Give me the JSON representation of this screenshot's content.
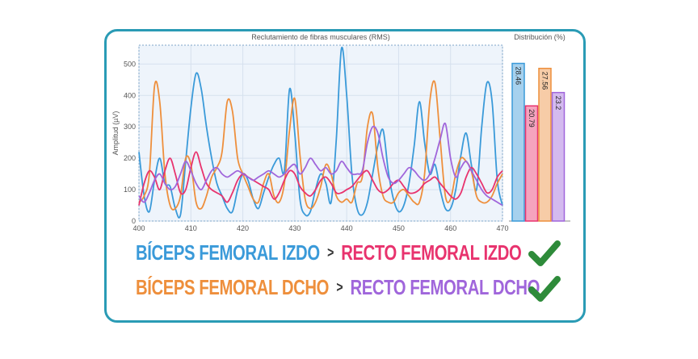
{
  "chart_data": [
    {
      "type": "line",
      "title": "Reclutamiento de fibras musculares (RMS)",
      "xlabel": "",
      "ylabel": "Amplitud (µV)",
      "xlim": [
        400,
        470
      ],
      "ylim": [
        0,
        560
      ],
      "x_ticks": [
        "400",
        "410",
        "420",
        "430",
        "440",
        "450",
        "460",
        "470"
      ],
      "y_ticks": [
        "0",
        "100",
        "200",
        "300",
        "400",
        "500"
      ],
      "grid": true,
      "series": [
        {
          "name": "",
          "color": "#3a9ad9",
          "x": [
            400,
            401,
            402,
            403,
            404,
            405,
            406,
            407,
            408,
            409,
            410,
            411,
            412,
            413,
            414,
            415,
            416,
            417,
            418,
            419,
            420,
            421,
            422,
            423,
            424,
            425,
            426,
            427,
            428,
            429,
            430,
            431,
            432,
            433,
            434,
            435,
            436,
            437,
            438,
            439,
            440,
            441,
            442,
            443,
            444,
            445,
            446,
            447,
            448,
            449,
            450,
            451,
            452,
            453,
            454,
            455,
            456,
            457,
            458,
            459,
            460,
            461,
            462,
            463,
            464,
            465,
            466,
            467,
            468,
            469,
            470
          ],
          "values": [
            220,
            80,
            30,
            130,
            200,
            120,
            110,
            40,
            20,
            190,
            360,
            470,
            420,
            300,
            200,
            120,
            80,
            40,
            30,
            100,
            150,
            130,
            70,
            40,
            90,
            140,
            180,
            200,
            160,
            420,
            280,
            70,
            20,
            30,
            100,
            150,
            120,
            60,
            260,
            550,
            400,
            150,
            40,
            20,
            60,
            150,
            240,
            290,
            160,
            70,
            30,
            50,
            120,
            240,
            380,
            250,
            150,
            180,
            100,
            40,
            40,
            100,
            210,
            280,
            180,
            100,
            300,
            440,
            380,
            130,
            50
          ]
        },
        {
          "name": "",
          "color": "#ee8f3c",
          "x": [
            400,
            401,
            402,
            403,
            404,
            405,
            406,
            407,
            408,
            409,
            410,
            411,
            412,
            413,
            414,
            415,
            416,
            417,
            418,
            419,
            420,
            421,
            422,
            423,
            424,
            425,
            426,
            427,
            428,
            429,
            430,
            431,
            432,
            433,
            434,
            435,
            436,
            437,
            438,
            439,
            440,
            441,
            442,
            443,
            444,
            445,
            446,
            447,
            448,
            449,
            450,
            451,
            452,
            453,
            454,
            455,
            456,
            457,
            458,
            459,
            460,
            461,
            462,
            463,
            464,
            465,
            466,
            467,
            468,
            469,
            470
          ],
          "values": [
            60,
            80,
            150,
            430,
            380,
            150,
            50,
            40,
            80,
            200,
            180,
            60,
            40,
            80,
            140,
            170,
            220,
            380,
            350,
            200,
            150,
            110,
            70,
            60,
            120,
            150,
            80,
            60,
            120,
            290,
            390,
            210,
            70,
            40,
            60,
            110,
            180,
            150,
            80,
            60,
            70,
            60,
            120,
            140,
            300,
            340,
            170,
            80,
            60,
            60,
            90,
            100,
            80,
            60,
            60,
            150,
            380,
            440,
            260,
            80,
            70,
            150,
            200,
            190,
            160,
            80,
            60,
            60,
            80,
            120,
            150
          ]
        },
        {
          "name": "",
          "color": "#e8336e",
          "x": [
            400,
            401,
            402,
            403,
            404,
            405,
            406,
            407,
            408,
            409,
            410,
            411,
            412,
            413,
            414,
            415,
            416,
            417,
            418,
            419,
            420,
            421,
            422,
            423,
            424,
            425,
            426,
            427,
            428,
            429,
            430,
            431,
            432,
            433,
            434,
            435,
            436,
            437,
            438,
            439,
            440,
            441,
            442,
            443,
            444,
            445,
            446,
            447,
            448,
            449,
            450,
            451,
            452,
            453,
            454,
            455,
            456,
            457,
            458,
            459,
            460,
            461,
            462,
            463,
            464,
            465,
            466,
            467,
            468,
            469,
            470
          ],
          "values": [
            50,
            120,
            160,
            140,
            100,
            160,
            200,
            150,
            90,
            100,
            170,
            220,
            170,
            120,
            100,
            90,
            80,
            60,
            90,
            130,
            150,
            140,
            130,
            120,
            110,
            100,
            70,
            90,
            130,
            160,
            150,
            110,
            90,
            80,
            100,
            130,
            140,
            120,
            90,
            90,
            100,
            110,
            130,
            150,
            160,
            130,
            100,
            90,
            100,
            120,
            130,
            110,
            90,
            90,
            100,
            120,
            130,
            140,
            120,
            100,
            80,
            70,
            90,
            140,
            170,
            150,
            120,
            90,
            100,
            140,
            160
          ]
        },
        {
          "name": "",
          "color": "#a066db",
          "x": [
            400,
            401,
            402,
            403,
            404,
            405,
            406,
            407,
            408,
            409,
            410,
            411,
            412,
            413,
            414,
            415,
            416,
            417,
            418,
            419,
            420,
            421,
            422,
            423,
            424,
            425,
            426,
            427,
            428,
            429,
            430,
            431,
            432,
            433,
            434,
            435,
            436,
            437,
            438,
            439,
            440,
            441,
            442,
            443,
            444,
            445,
            446,
            447,
            448,
            449,
            450,
            451,
            452,
            453,
            454,
            455,
            456,
            457,
            458,
            459,
            460,
            461,
            462,
            463,
            464,
            465,
            466,
            467,
            468,
            469,
            470
          ],
          "values": [
            80,
            60,
            90,
            130,
            150,
            120,
            100,
            110,
            150,
            190,
            160,
            120,
            100,
            130,
            160,
            170,
            150,
            140,
            150,
            160,
            150,
            140,
            130,
            140,
            150,
            160,
            150,
            140,
            150,
            170,
            180,
            150,
            170,
            200,
            180,
            160,
            170,
            150,
            160,
            190,
            170,
            150,
            150,
            160,
            250,
            300,
            280,
            200,
            140,
            120,
            130,
            150,
            170,
            160,
            140,
            130,
            150,
            200,
            260,
            310,
            200,
            140,
            170,
            190,
            160,
            130,
            100,
            80,
            70,
            60,
            50
          ]
        }
      ]
    },
    {
      "type": "bar",
      "title": "Distribución (%)",
      "categories": [
        "",
        "",
        "",
        ""
      ],
      "values": [
        28.46,
        20.79,
        27.56,
        23.2
      ],
      "value_labels": [
        "28.46",
        "20.79",
        "27.56",
        "23.2"
      ],
      "colors": [
        "#3a9ad9",
        "#e8336e",
        "#ee8f3c",
        "#a066db"
      ],
      "ylim": [
        0,
        30
      ]
    }
  ],
  "legend": {
    "row1": {
      "left": "BÍCEPS FEMORAL IZDO",
      "separator": ">",
      "right": "RECTO FEMORAL IZDO"
    },
    "row2": {
      "left": "BÍCEPS FEMORAL DCHO",
      "separator": ">",
      "right": "RECTO FEMORAL DCHO"
    },
    "colors": {
      "biceps_izdo": "#3a9ad9",
      "recto_izdo": "#e8336e",
      "biceps_dcho": "#ee8f3c",
      "recto_dcho": "#a066db",
      "check": "#2e8b3a"
    },
    "icons": [
      "check-icon",
      "check-icon"
    ]
  }
}
